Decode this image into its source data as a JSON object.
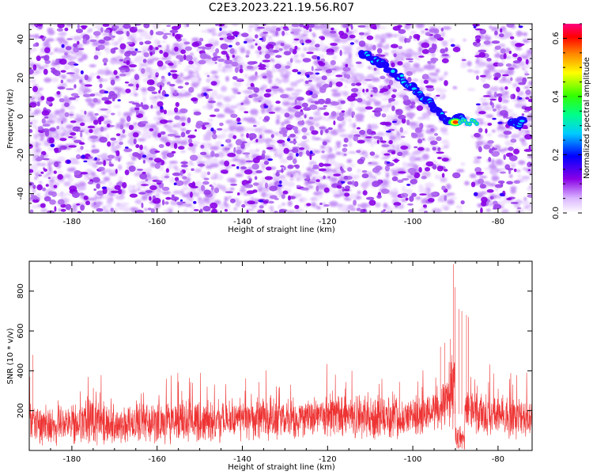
{
  "title": "C2E3.2023.221.19.56.R07",
  "chart_data": [
    {
      "type": "heatmap",
      "xlabel": "Height of straight line (km)",
      "ylabel": "Frequency (Hz)",
      "xlim": [
        -190,
        -72
      ],
      "ylim": [
        -50,
        48
      ],
      "xticks": [
        -180,
        -160,
        -140,
        -120,
        -100,
        -80
      ],
      "yticks": [
        -40,
        -20,
        0,
        20,
        40
      ],
      "colorbar": {
        "label": "Normalized spectral amplitude",
        "range": [
          0,
          0.65
        ],
        "ticks": [
          0.0,
          0.2,
          0.4,
          0.6
        ],
        "colors": [
          "#ffffff",
          "#8a00e6",
          "#0000ff",
          "#00ffff",
          "#00ff00",
          "#ffff00",
          "#ff8800",
          "#ff0000",
          "#ff0080"
        ]
      },
      "background_noise_color": "#8a00e6",
      "features": [
        {
          "name": "meteor trail",
          "x": [
            -112,
            -108,
            -104,
            -100,
            -97,
            -94,
            -91,
            -88
          ],
          "y": [
            33,
            28,
            22,
            15,
            9,
            2,
            -3,
            0
          ],
          "peak_amplitude": 0.6,
          "peak_x": -90,
          "peak_y": -3
        },
        {
          "name": "return",
          "x": [
            -77,
            -75,
            -74
          ],
          "y": [
            -2,
            -4,
            -1
          ],
          "peak_amplitude": 0.3
        }
      ],
      "gap_regions": [
        [
          -92,
          -85
        ]
      ]
    },
    {
      "type": "line",
      "color": "#ee3333",
      "xlabel": "Height of straight line (km)",
      "ylabel": "SNR (10 * v/v)",
      "xlim": [
        -190,
        -72
      ],
      "ylim": [
        0,
        950
      ],
      "xticks": [
        -180,
        -160,
        -140,
        -120,
        -100,
        -80
      ],
      "yticks": [
        200,
        400,
        600,
        800
      ],
      "noise_floor": {
        "baseline": [
          [
            -190,
            130
          ],
          [
            -150,
            145
          ],
          [
            -120,
            165
          ],
          [
            -100,
            170
          ],
          [
            -90,
            185
          ],
          [
            -72,
            150
          ]
        ],
        "spread": 110
      },
      "peaks": [
        {
          "x": -90.5,
          "y": 935
        },
        {
          "x": -90.1,
          "y": 820
        },
        {
          "x": -89.2,
          "y": 710
        },
        {
          "x": -88.5,
          "y": 700
        },
        {
          "x": -87.4,
          "y": 680
        },
        {
          "x": -86.9,
          "y": 670
        },
        {
          "x": -91.2,
          "y": 560
        },
        {
          "x": -92.5,
          "y": 540
        },
        {
          "x": -93.5,
          "y": 520
        },
        {
          "x": -189.2,
          "y": 480
        }
      ],
      "gap": [
        -90,
        -87.8
      ]
    }
  ]
}
